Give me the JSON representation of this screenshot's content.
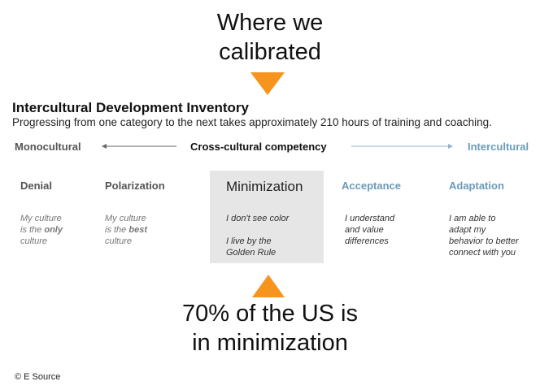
{
  "top_callout": {
    "line1": "Where we",
    "line2": "calibrated"
  },
  "title": "Intercultural Development Inventory",
  "subtitle": "Progressing from one category to the next takes approximately 210 hours of training and coaching.",
  "axis": {
    "left": "Monocultural",
    "center": "Cross-cultural competency",
    "right": "Intercultural"
  },
  "stages": [
    {
      "name": "Denial",
      "desc": [
        "My culture",
        "is the ",
        "only",
        "culture"
      ]
    },
    {
      "name": "Polarization",
      "desc": [
        "My culture",
        "is the ",
        "best",
        "culture"
      ]
    },
    {
      "name": "Minimization",
      "desc": [
        "I don't see color",
        "I live by the",
        "Golden Rule"
      ]
    },
    {
      "name": "Acceptance",
      "desc": [
        "I understand",
        "and value",
        "differences"
      ]
    },
    {
      "name": "Adaptation",
      "desc": [
        "I am able to",
        "adapt my",
        "behavior to better",
        "connect with you"
      ]
    }
  ],
  "bottom_callout": {
    "line1": "70% of the US is",
    "line2": "in minimization"
  },
  "copyright": "© E Source",
  "colors": {
    "accent": "#f7941d",
    "intercultural": "#6a9bb8",
    "highlight_box": "#e6e6e6"
  }
}
